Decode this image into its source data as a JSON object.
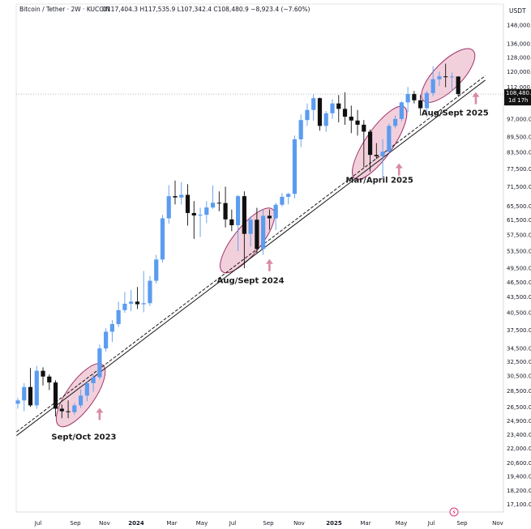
{
  "header": {
    "title": "Bitcoin / Tether · 2W · KUCOIN",
    "ohlc": "O117,404.3  H117,535.9  L107,342.4  C108,480.9  −8,923.4 (−7.60%)",
    "currency": "USDT"
  },
  "price_label": {
    "value": "108,480.9",
    "countdown": "1d 17h"
  },
  "colors": {
    "up": "#5b9cf0",
    "down": "#101010",
    "ellipse_fill": "#e7a9bd",
    "ellipse_stroke": "#a0336a",
    "arrow": "#d88aa8",
    "trend": "#1a1a1a"
  },
  "chart_data": {
    "type": "candlestick",
    "scale": "log",
    "ylim": [
      16500,
      152000
    ],
    "y_ticks": [
      "148,000.0",
      "136,000.0",
      "128,000.0",
      "120,000.0",
      "112,000.0",
      "97,000.0",
      "89,500.0",
      "83,500.0",
      "77,500.0",
      "71,500.0",
      "65,500.0",
      "61,500.0",
      "57,500.0",
      "53,500.0",
      "49,500.0",
      "46,500.0",
      "43,500.0",
      "40,500.0",
      "37,500.0",
      "34,500.0",
      "32,500.0",
      "30,500.0",
      "28,500.0",
      "26,500.0",
      "24,900.0",
      "23,400.0",
      "22,000.0",
      "20,600.0",
      "19,400.0",
      "18,200.0",
      "17,100.0"
    ],
    "x_ticks": [
      {
        "label": "Jul",
        "bold": false
      },
      {
        "label": "Sep",
        "bold": false
      },
      {
        "label": "Nov",
        "bold": false
      },
      {
        "label": "2024",
        "bold": true
      },
      {
        "label": "Mar",
        "bold": false
      },
      {
        "label": "May",
        "bold": false
      },
      {
        "label": "Jul",
        "bold": false
      },
      {
        "label": "Sep",
        "bold": false
      },
      {
        "label": "Nov",
        "bold": false
      },
      {
        "label": "2025",
        "bold": true
      },
      {
        "label": "Mar",
        "bold": false
      },
      {
        "label": "May",
        "bold": false
      },
      {
        "label": "Jul",
        "bold": false
      },
      {
        "label": "Sep",
        "bold": false
      },
      {
        "label": "Nov",
        "bold": false
      }
    ],
    "candles": [
      {
        "o": 26900,
        "h": 27600,
        "l": 26300,
        "c": 27300
      },
      {
        "o": 27300,
        "h": 29500,
        "l": 26000,
        "c": 29000
      },
      {
        "o": 29000,
        "h": 31600,
        "l": 26500,
        "c": 26700
      },
      {
        "o": 26700,
        "h": 31900,
        "l": 26300,
        "c": 31200
      },
      {
        "o": 31200,
        "h": 31700,
        "l": 29200,
        "c": 30400
      },
      {
        "o": 30400,
        "h": 30700,
        "l": 28600,
        "c": 29600
      },
      {
        "o": 29600,
        "h": 29900,
        "l": 25400,
        "c": 26300
      },
      {
        "o": 26300,
        "h": 26800,
        "l": 25200,
        "c": 26000
      },
      {
        "o": 26000,
        "h": 27300,
        "l": 25200,
        "c": 25900
      },
      {
        "o": 25900,
        "h": 27000,
        "l": 25600,
        "c": 26700
      },
      {
        "o": 26700,
        "h": 28700,
        "l": 26400,
        "c": 27900
      },
      {
        "o": 27900,
        "h": 29700,
        "l": 27200,
        "c": 29500
      },
      {
        "o": 29500,
        "h": 30700,
        "l": 28400,
        "c": 30300
      },
      {
        "o": 30300,
        "h": 35100,
        "l": 30000,
        "c": 34500
      },
      {
        "o": 34500,
        "h": 37800,
        "l": 34000,
        "c": 37200
      },
      {
        "o": 37200,
        "h": 39200,
        "l": 35500,
        "c": 38500
      },
      {
        "o": 38500,
        "h": 42600,
        "l": 38000,
        "c": 41000
      },
      {
        "o": 41000,
        "h": 44500,
        "l": 40500,
        "c": 42200
      },
      {
        "o": 42200,
        "h": 44900,
        "l": 40800,
        "c": 42600
      },
      {
        "o": 42600,
        "h": 45500,
        "l": 41200,
        "c": 42100
      },
      {
        "o": 42100,
        "h": 48900,
        "l": 40600,
        "c": 42300
      },
      {
        "o": 42300,
        "h": 47800,
        "l": 41800,
        "c": 46800
      },
      {
        "o": 46800,
        "h": 52600,
        "l": 46200,
        "c": 51500
      },
      {
        "o": 51500,
        "h": 63000,
        "l": 50800,
        "c": 62000
      },
      {
        "o": 62000,
        "h": 72000,
        "l": 60500,
        "c": 68500
      },
      {
        "o": 68500,
        "h": 73500,
        "l": 66000,
        "c": 68100
      },
      {
        "o": 68100,
        "h": 73000,
        "l": 66000,
        "c": 68900
      },
      {
        "o": 68900,
        "h": 72300,
        "l": 60000,
        "c": 63500
      },
      {
        "o": 63500,
        "h": 67000,
        "l": 56500,
        "c": 62800
      },
      {
        "o": 62800,
        "h": 65000,
        "l": 57000,
        "c": 63000
      },
      {
        "o": 63000,
        "h": 67000,
        "l": 60700,
        "c": 65100
      },
      {
        "o": 65100,
        "h": 71900,
        "l": 64700,
        "c": 66500
      },
      {
        "o": 66500,
        "h": 70000,
        "l": 64000,
        "c": 66400
      },
      {
        "o": 66400,
        "h": 71500,
        "l": 59500,
        "c": 61700
      },
      {
        "o": 61700,
        "h": 64500,
        "l": 58500,
        "c": 60100
      },
      {
        "o": 60100,
        "h": 68900,
        "l": 53500,
        "c": 68500
      },
      {
        "o": 68500,
        "h": 70000,
        "l": 49500,
        "c": 57800
      },
      {
        "o": 57800,
        "h": 62500,
        "l": 54600,
        "c": 61600
      },
      {
        "o": 61600,
        "h": 65000,
        "l": 53000,
        "c": 54000
      },
      {
        "o": 54000,
        "h": 64500,
        "l": 52600,
        "c": 62700
      },
      {
        "o": 62700,
        "h": 64500,
        "l": 58900,
        "c": 62000
      },
      {
        "o": 62000,
        "h": 66500,
        "l": 58800,
        "c": 65900
      },
      {
        "o": 65900,
        "h": 69500,
        "l": 65400,
        "c": 68300
      },
      {
        "o": 68300,
        "h": 69500,
        "l": 66000,
        "c": 69200
      },
      {
        "o": 69200,
        "h": 90000,
        "l": 67800,
        "c": 88500
      },
      {
        "o": 88500,
        "h": 99000,
        "l": 85500,
        "c": 96500
      },
      {
        "o": 96500,
        "h": 104000,
        "l": 94000,
        "c": 101000
      },
      {
        "o": 101000,
        "h": 108400,
        "l": 96200,
        "c": 106500
      },
      {
        "o": 106500,
        "h": 106800,
        "l": 92000,
        "c": 94000
      },
      {
        "o": 94000,
        "h": 100500,
        "l": 91500,
        "c": 99500
      },
      {
        "o": 99500,
        "h": 106000,
        "l": 97000,
        "c": 104000
      },
      {
        "o": 104000,
        "h": 108000,
        "l": 95500,
        "c": 101500
      },
      {
        "o": 101500,
        "h": 109400,
        "l": 94500,
        "c": 98000
      },
      {
        "o": 98000,
        "h": 103000,
        "l": 91000,
        "c": 96300
      },
      {
        "o": 96300,
        "h": 101000,
        "l": 90000,
        "c": 94500
      },
      {
        "o": 94500,
        "h": 96500,
        "l": 78000,
        "c": 91600
      },
      {
        "o": 91600,
        "h": 92500,
        "l": 76500,
        "c": 82500
      },
      {
        "o": 82500,
        "h": 87000,
        "l": 81000,
        "c": 82000
      },
      {
        "o": 82000,
        "h": 88500,
        "l": 74500,
        "c": 83700
      },
      {
        "o": 83700,
        "h": 95000,
        "l": 83000,
        "c": 94000
      },
      {
        "o": 94000,
        "h": 98500,
        "l": 93000,
        "c": 97000
      },
      {
        "o": 97000,
        "h": 105000,
        "l": 96000,
        "c": 104500
      },
      {
        "o": 104500,
        "h": 112000,
        "l": 100000,
        "c": 108500
      },
      {
        "o": 108500,
        "h": 110000,
        "l": 104000,
        "c": 105500
      },
      {
        "o": 105500,
        "h": 108000,
        "l": 98500,
        "c": 101800
      },
      {
        "o": 101800,
        "h": 110000,
        "l": 98000,
        "c": 109000
      },
      {
        "o": 109000,
        "h": 123000,
        "l": 107500,
        "c": 116000
      },
      {
        "o": 116000,
        "h": 120000,
        "l": 112500,
        "c": 117500
      },
      {
        "o": 117500,
        "h": 124400,
        "l": 111900,
        "c": 117200
      },
      {
        "o": 117200,
        "h": 119500,
        "l": 110000,
        "c": 117400
      },
      {
        "o": 117404.3,
        "h": 117535.9,
        "l": 107342.4,
        "c": 108480.9
      }
    ],
    "trendlines": [
      {
        "x1": -0.2,
        "v1": 23300,
        "x2": 74.3,
        "v2": 115500,
        "style": "solid"
      },
      {
        "x1": -0.2,
        "v1": 23700,
        "x2": 74.3,
        "v2": 117800,
        "style": "dashed"
      }
    ],
    "annotations": [
      {
        "label": "Sept/Oct 2023",
        "ellipse": {
          "i1": 7,
          "i2": 13,
          "v1": 24800,
          "v2": 31500
        },
        "arrow_i": 13,
        "arrow_v": 26400,
        "text_i": 10.5,
        "text_v": 22900
      },
      {
        "label": "Aug/Sept 2024",
        "ellipse": {
          "i1": 33,
          "i2": 40,
          "v1": 49600,
          "v2": 63500
        },
        "arrow_i": 40,
        "arrow_v": 51600,
        "text_i": 37,
        "text_v": 46300
      },
      {
        "label": "Mar/April 2025",
        "ellipse": {
          "i1": 54,
          "i2": 61,
          "v1": 75500,
          "v2": 100500
        },
        "arrow_i": 60.6,
        "arrow_v": 79400,
        "text_i": 57.5,
        "text_v": 72800
      },
      {
        "label": "Aug/Sept 2025",
        "ellipse": {
          "i1": 65,
          "i2": 71.8,
          "v1": 107000,
          "v2": 130000
        },
        "arrow_i": 72.8,
        "arrow_v": 109500,
        "text_i": 69.5,
        "text_v": 98500
      }
    ]
  }
}
